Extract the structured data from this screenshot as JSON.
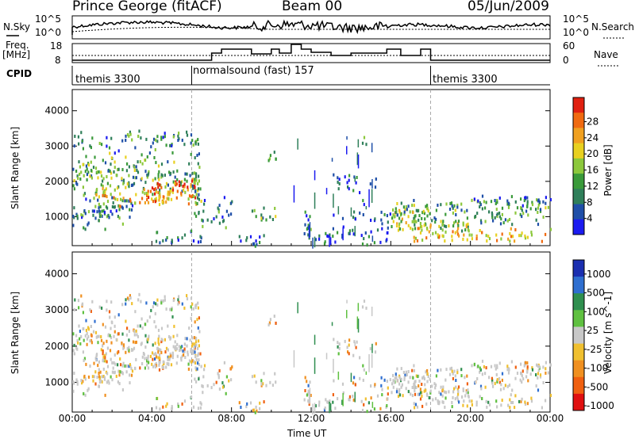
{
  "header": {
    "station": "Prince George (fitACF)",
    "beam": "Beam 00",
    "date": "05/Jun/2009"
  },
  "panels": {
    "nsky_label": "N.Sky",
    "nsearch_label": "N.Search",
    "freq_label_line1": "Freq.",
    "freq_label_line2": "[MHz]",
    "nave_label": "Nave",
    "cpid_label": "CPID",
    "nsky_ticks": [
      "10^5",
      "10^0"
    ],
    "nsearch_ticks": [
      "10^5",
      "10^0"
    ],
    "freq_ticks": [
      "18",
      "8"
    ],
    "nave_ticks": [
      "60",
      "0"
    ]
  },
  "cpid_segments": [
    {
      "label": "themis 3300",
      "start_hour": 0
    },
    {
      "label": "normalsound (fast) 157",
      "start_hour": 6
    },
    {
      "label": "themis 3300",
      "start_hour": 18
    }
  ],
  "chart_data": [
    {
      "type": "heatmap",
      "quantity": "Power",
      "ylabel": "Slant Range [km]",
      "xlabel": "Time UT",
      "xlim": [
        0,
        24
      ],
      "ylim": [
        180,
        4600
      ],
      "x_ticks": [
        "00:00",
        "04:00",
        "08:00",
        "12:00",
        "16:00",
        "20:00",
        "00:00"
      ],
      "y_ticks": [
        1000,
        2000,
        3000,
        4000
      ],
      "colorbar": {
        "label": "Power [dB]",
        "ticks": [
          4,
          8,
          12,
          16,
          20,
          24,
          28
        ],
        "colors": [
          "#1b1bf0",
          "#1f4fa8",
          "#2f7f5a",
          "#3a9a3a",
          "#8cc83c",
          "#e8d020",
          "#f0a020",
          "#f06a10",
          "#e02010"
        ]
      }
    },
    {
      "type": "heatmap",
      "quantity": "Velocity",
      "ylabel": "Slant Range [km]",
      "xlabel": "Time UT",
      "xlim": [
        0,
        24
      ],
      "ylim": [
        180,
        4600
      ],
      "x_ticks": [
        "00:00",
        "04:00",
        "08:00",
        "12:00",
        "16:00",
        "20:00",
        "00:00"
      ],
      "y_ticks": [
        1000,
        2000,
        3000,
        4000
      ],
      "colorbar": {
        "label": "Velocity [m s^-1]",
        "ticks": [
          "1000",
          "500",
          "100",
          "25",
          "-25",
          "-100",
          "-500",
          "-1000"
        ],
        "colors": [
          "#1b2fb0",
          "#2f6fd0",
          "#2f8f4f",
          "#5fc040",
          "#c8c8c8",
          "#f0c030",
          "#f09020",
          "#f06010",
          "#e01010"
        ]
      }
    }
  ],
  "xaxis_title": "Time UT"
}
